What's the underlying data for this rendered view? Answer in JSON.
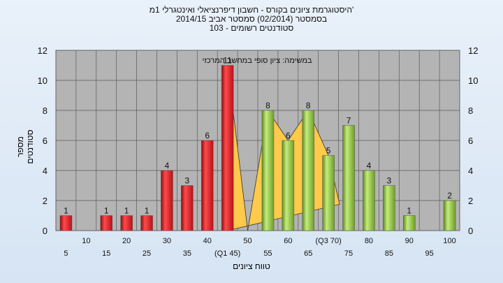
{
  "chart_data": {
    "type": "bar",
    "title": [
      "היסטוגרמת ציונים בקורס - חשבון דיפרנציאלי ואינטגרלי 1מ'",
      "בסמסטר  (02/2014)  סמסטר אביב 2014/15",
      "סטודנטים רשומים - 103"
    ],
    "xlabel": "טווח ציונים",
    "ylabel": "מספר סטודנטים",
    "annotation": "במשימה: ציון סופי במחשב המרכזי",
    "ylim": [
      0,
      12
    ],
    "yticks": [
      0,
      2,
      4,
      6,
      8,
      10,
      12
    ],
    "categories": [
      "5",
      "10",
      "15",
      "20",
      "25",
      "30",
      "35",
      "40",
      "(Q1 45)",
      "50",
      "55",
      "60",
      "65",
      "(Q3 70)",
      "75",
      "80",
      "85",
      "90",
      "95",
      "100"
    ],
    "values": [
      1,
      0,
      1,
      1,
      1,
      4,
      3,
      6,
      11,
      0,
      8,
      6,
      8,
      5,
      7,
      4,
      3,
      1,
      0,
      2
    ],
    "bar_colors": [
      "red",
      "red",
      "red",
      "red",
      "red",
      "red",
      "red",
      "red",
      "red",
      "red",
      "green",
      "green",
      "green",
      "green",
      "green",
      "green",
      "green",
      "green",
      "green",
      "green"
    ],
    "colors": {
      "red": "#e8262a",
      "green": "#8cc43c",
      "highlight": "#ffc94a",
      "plot_bg": "#b4b4b4"
    },
    "grid": true
  }
}
